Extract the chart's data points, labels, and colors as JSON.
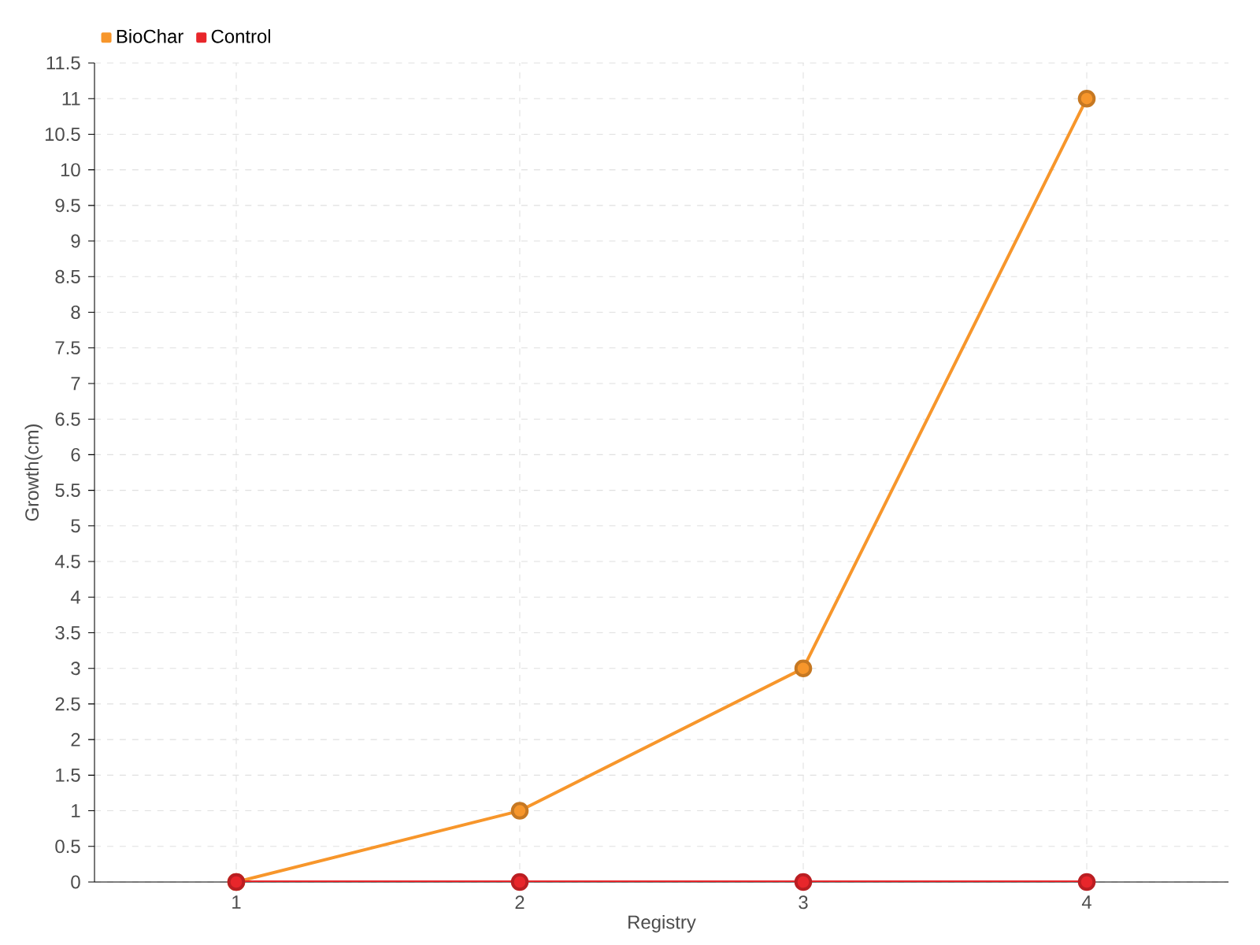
{
  "chart_data": {
    "type": "line",
    "xlabel": "Registry",
    "ylabel": "Growth(cm)",
    "categories": [
      "1",
      "2",
      "3",
      "4"
    ],
    "series": [
      {
        "name": "BioChar",
        "color": "#f7962b",
        "values": [
          0,
          1,
          3,
          11
        ]
      },
      {
        "name": "Control",
        "color": "#e8262b",
        "values": [
          0,
          0,
          0,
          0
        ]
      }
    ],
    "ylim": [
      0,
      11.5
    ],
    "yticks": [
      0,
      0.5,
      1,
      1.5,
      2,
      2.5,
      3,
      3.5,
      4,
      4.5,
      5,
      5.5,
      6,
      6.5,
      7,
      7.5,
      8,
      8.5,
      9,
      9.5,
      10,
      10.5,
      11,
      11.5
    ],
    "grid": true,
    "legend": "top left",
    "marker": "circle",
    "line_style": "solid"
  }
}
